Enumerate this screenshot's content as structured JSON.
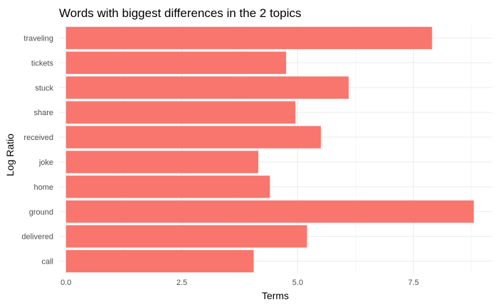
{
  "chart_data": {
    "type": "bar",
    "orientation": "horizontal",
    "title": "Words with biggest differences in the 2 topics",
    "xlabel": "Terms",
    "ylabel": "Log Ratio",
    "categories": [
      "traveling",
      "tickets",
      "stuck",
      "share",
      "received",
      "joke",
      "home",
      "ground",
      "delivered",
      "call"
    ],
    "values": [
      7.9,
      4.75,
      6.1,
      4.95,
      5.5,
      4.15,
      4.4,
      8.8,
      5.2,
      4.05
    ],
    "xlim": [
      -0.15,
      9.2
    ],
    "xticks": [
      0.0,
      2.5,
      5.0,
      7.5
    ],
    "xtick_labels": [
      "0.0",
      "2.5",
      "5.0",
      "7.5"
    ],
    "bar_color": "#F8766D",
    "grid": true,
    "theme": "minimal"
  }
}
